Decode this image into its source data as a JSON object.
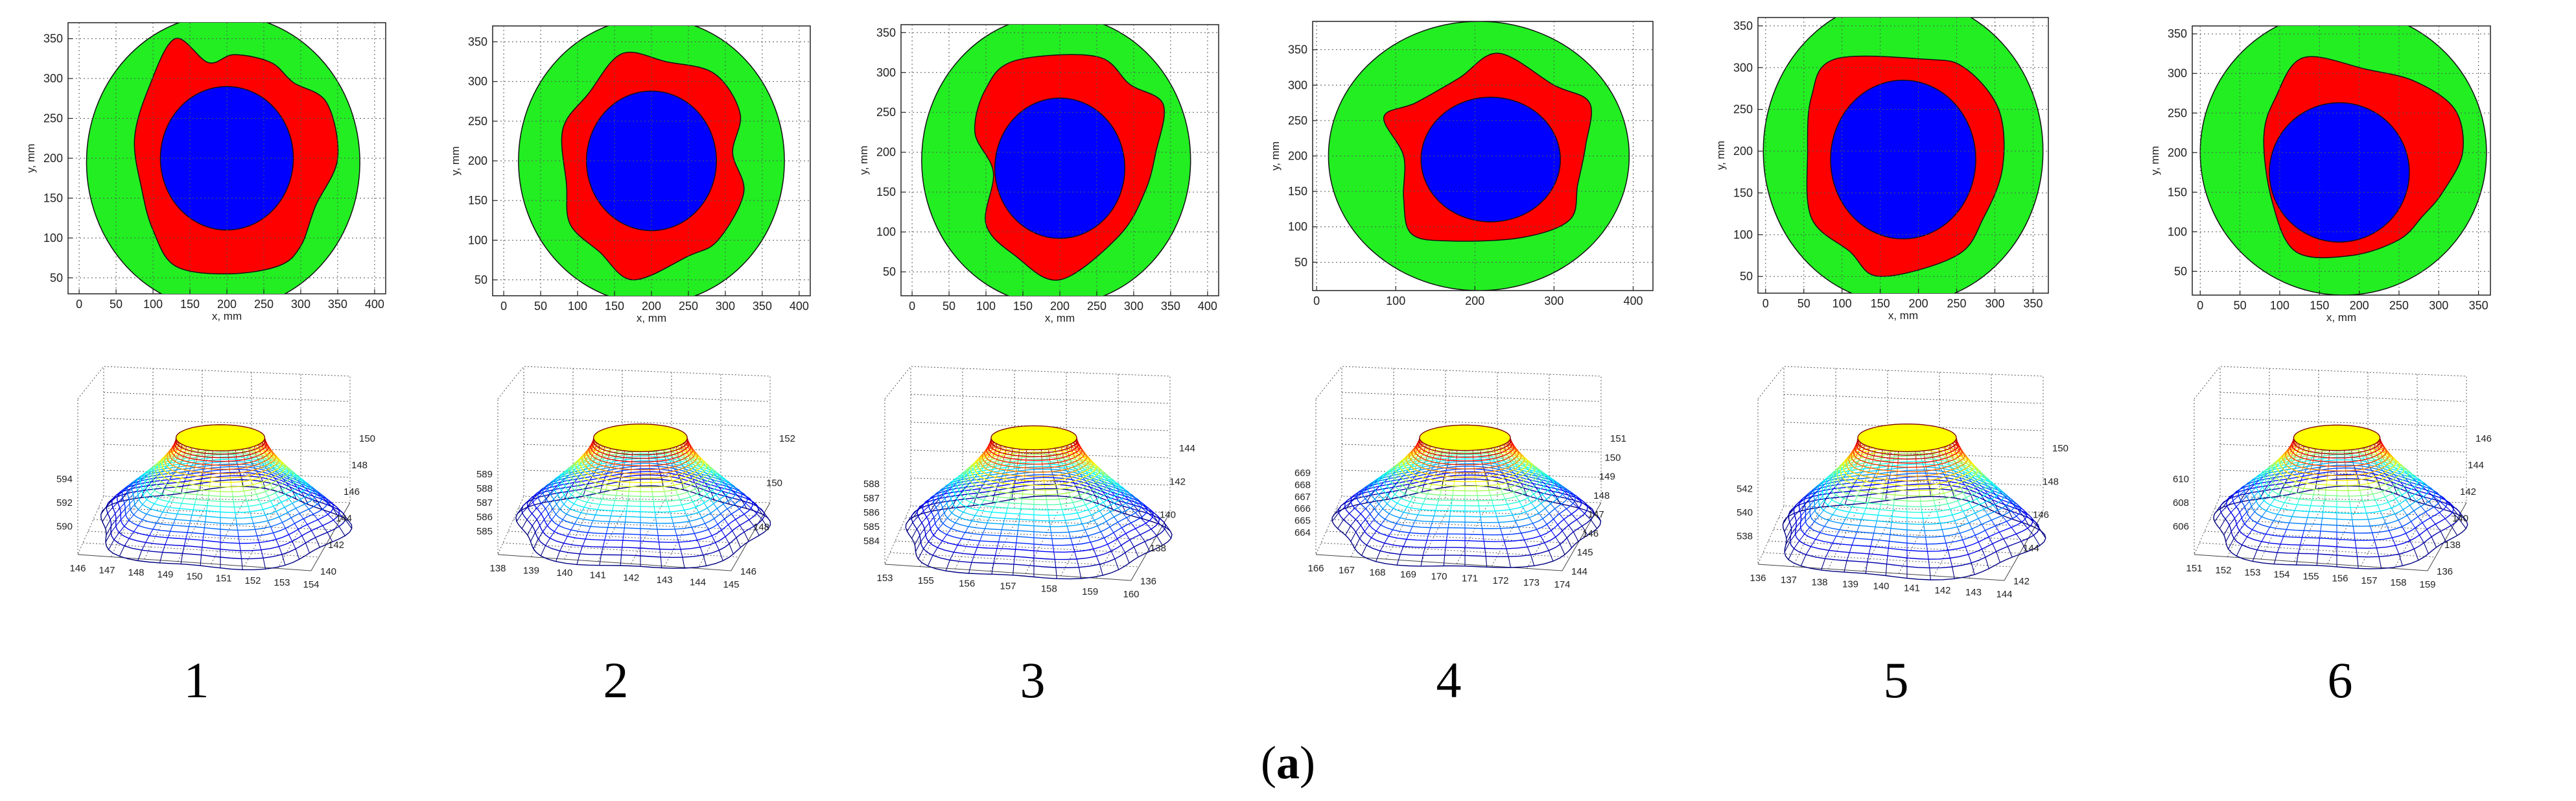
{
  "figure": {
    "label_prefix": "(",
    "label_letter": "a",
    "label_suffix": ")",
    "panel_captions": [
      "1",
      "2",
      "3",
      "4",
      "5",
      "6"
    ]
  },
  "colors": {
    "outer_region": "#22ee22",
    "middle_region": "#ff0000",
    "inner_region": "#0000ff",
    "surface_top": "#ffff00",
    "grid": "#888888"
  },
  "chart_data": [
    {
      "type": "area",
      "panel": "1",
      "xlabel": "x, mm",
      "ylabel": "y, mm",
      "xticks": [
        "0",
        "50",
        "100",
        "150",
        "200",
        "250",
        "300",
        "350",
        "400"
      ],
      "yticks": [
        "50",
        "100",
        "150",
        "200",
        "250",
        "300",
        "350"
      ],
      "xlim": [
        -15,
        415
      ],
      "ylim": [
        30,
        370
      ],
      "grid": true,
      "outer_circle": {
        "cx": 195,
        "cy": 195,
        "r": 185
      },
      "inner_circle": {
        "cx": 200,
        "cy": 200,
        "r": 90
      },
      "middle_region": [
        [
          130,
          350
        ],
        [
          175,
          320
        ],
        [
          210,
          330
        ],
        [
          260,
          320
        ],
        [
          290,
          295
        ],
        [
          335,
          270
        ],
        [
          350,
          200
        ],
        [
          320,
          140
        ],
        [
          300,
          90
        ],
        [
          270,
          65
        ],
        [
          200,
          55
        ],
        [
          130,
          65
        ],
        [
          100,
          110
        ],
        [
          85,
          160
        ],
        [
          75,
          225
        ],
        [
          95,
          290
        ]
      ]
    },
    {
      "type": "area",
      "panel": "2",
      "xlabel": "x, mm",
      "ylabel": "y, mm",
      "xticks": [
        "0",
        "50",
        "100",
        "150",
        "200",
        "250",
        "300",
        "350",
        "400"
      ],
      "yticks": [
        "50",
        "100",
        "150",
        "200",
        "250",
        "300",
        "350"
      ],
      "xlim": [
        -15,
        415
      ],
      "ylim": [
        30,
        370
      ],
      "grid": true,
      "outer_circle": {
        "cx": 200,
        "cy": 200,
        "r": 180
      },
      "inner_circle": {
        "cx": 200,
        "cy": 200,
        "r": 88
      },
      "middle_region": [
        [
          160,
          335
        ],
        [
          220,
          325
        ],
        [
          285,
          310
        ],
        [
          320,
          260
        ],
        [
          310,
          210
        ],
        [
          325,
          160
        ],
        [
          290,
          100
        ],
        [
          250,
          80
        ],
        [
          175,
          50
        ],
        [
          130,
          85
        ],
        [
          90,
          120
        ],
        [
          85,
          170
        ],
        [
          80,
          240
        ],
        [
          115,
          285
        ]
      ]
    },
    {
      "type": "area",
      "panel": "3",
      "xlabel": "x, mm",
      "ylabel": "y, mm",
      "xticks": [
        "0",
        "50",
        "100",
        "150",
        "200",
        "250",
        "300",
        "350",
        "400"
      ],
      "yticks": [
        "50",
        "100",
        "150",
        "200",
        "250",
        "300",
        "350"
      ],
      "xlim": [
        -15,
        415
      ],
      "ylim": [
        20,
        360
      ],
      "grid": true,
      "outer_circle": {
        "cx": 195,
        "cy": 190,
        "r": 182
      },
      "inner_circle": {
        "cx": 200,
        "cy": 180,
        "r": 88
      },
      "middle_region": [
        [
          140,
          315
        ],
        [
          250,
          320
        ],
        [
          295,
          285
        ],
        [
          340,
          260
        ],
        [
          330,
          200
        ],
        [
          315,
          150
        ],
        [
          280,
          95
        ],
        [
          200,
          40
        ],
        [
          140,
          70
        ],
        [
          100,
          110
        ],
        [
          110,
          175
        ],
        [
          85,
          225
        ],
        [
          100,
          280
        ]
      ]
    },
    {
      "type": "area",
      "panel": "4",
      "xlabel": "",
      "ylabel": "y, mm",
      "xticks": [
        "0",
        "100",
        "200",
        "300",
        "400"
      ],
      "yticks": [
        "50",
        "100",
        "150",
        "200",
        "250",
        "300",
        "350"
      ],
      "xlim": [
        -5,
        425
      ],
      "ylim": [
        10,
        390
      ],
      "grid": true,
      "outer_circle": {
        "cx": 205,
        "cy": 200,
        "r": 190
      },
      "inner_circle": {
        "cx": 220,
        "cy": 195,
        "r": 88
      },
      "middle_region": [
        [
          230,
          345
        ],
        [
          300,
          300
        ],
        [
          345,
          275
        ],
        [
          340,
          215
        ],
        [
          330,
          160
        ],
        [
          320,
          110
        ],
        [
          260,
          85
        ],
        [
          170,
          80
        ],
        [
          120,
          90
        ],
        [
          110,
          140
        ],
        [
          110,
          200
        ],
        [
          85,
          255
        ],
        [
          125,
          275
        ],
        [
          180,
          310
        ]
      ]
    },
    {
      "type": "area",
      "panel": "5",
      "xlabel": "x, mm",
      "ylabel": "y, mm",
      "xticks": [
        "0",
        "50",
        "100",
        "150",
        "200",
        "250",
        "300",
        "350"
      ],
      "yticks": [
        "50",
        "100",
        "150",
        "200",
        "250",
        "300",
        "350"
      ],
      "xlim": [
        -10,
        370
      ],
      "ylim": [
        30,
        360
      ],
      "grid": true,
      "outer_circle": {
        "cx": 180,
        "cy": 200,
        "r": 183
      },
      "inner_circle": {
        "cx": 180,
        "cy": 190,
        "r": 95
      },
      "middle_region": [
        [
          90,
          310
        ],
        [
          210,
          310
        ],
        [
          260,
          300
        ],
        [
          305,
          250
        ],
        [
          310,
          180
        ],
        [
          285,
          120
        ],
        [
          250,
          75
        ],
        [
          150,
          50
        ],
        [
          110,
          80
        ],
        [
          60,
          120
        ],
        [
          55,
          200
        ],
        [
          60,
          265
        ]
      ]
    },
    {
      "type": "area",
      "panel": "6",
      "xlabel": "x, mm",
      "ylabel": "y, mm",
      "xticks": [
        "0",
        "50",
        "100",
        "150",
        "200",
        "250",
        "300",
        "350"
      ],
      "yticks": [
        "50",
        "100",
        "150",
        "200",
        "250",
        "300",
        "350"
      ],
      "xlim": [
        -10,
        365
      ],
      "ylim": [
        20,
        360
      ],
      "grid": true,
      "outer_circle": {
        "cx": 180,
        "cy": 200,
        "r": 180
      },
      "inner_circle": {
        "cx": 175,
        "cy": 175,
        "r": 88
      },
      "middle_region": [
        [
          130,
          320
        ],
        [
          210,
          305
        ],
        [
          270,
          290
        ],
        [
          320,
          255
        ],
        [
          330,
          200
        ],
        [
          305,
          150
        ],
        [
          280,
          120
        ],
        [
          250,
          90
        ],
        [
          190,
          70
        ],
        [
          120,
          75
        ],
        [
          90,
          140
        ],
        [
          80,
          220
        ],
        [
          95,
          270
        ]
      ]
    }
  ],
  "surfaces": [
    {
      "panel": "1",
      "xticks": [
        "146",
        "147",
        "148",
        "149",
        "150",
        "151",
        "152",
        "153",
        "154"
      ],
      "yticks": [
        "140",
        "142",
        "144",
        "146",
        "148",
        "150"
      ],
      "zticks": [
        "590",
        "592",
        "594"
      ],
      "extra_zticks": [],
      "lobes": 5,
      "phase": 0.3,
      "rings": 22,
      "top_ratio": 0.36
    },
    {
      "panel": "2",
      "xticks": [
        "138",
        "139",
        "140",
        "141",
        "142",
        "143",
        "144",
        "145"
      ],
      "yticks": [
        "146",
        "148",
        "150",
        "152"
      ],
      "zticks": [
        "585",
        "586",
        "587",
        "588",
        "589"
      ],
      "extra_zticks": [],
      "lobes": 5,
      "phase": 1.0,
      "rings": 22,
      "top_ratio": 0.38
    },
    {
      "panel": "3",
      "xticks": [
        "153",
        "155",
        "156",
        "157",
        "158",
        "159",
        "160"
      ],
      "yticks": [
        "136",
        "138",
        "140",
        "142",
        "144"
      ],
      "zticks": [
        "584",
        "585",
        "586",
        "587",
        "588"
      ],
      "extra_zticks": [],
      "lobes": 5,
      "phase": 0.6,
      "rings": 24,
      "top_ratio": 0.33
    },
    {
      "panel": "4",
      "xticks": [
        "166",
        "167",
        "168",
        "169",
        "170",
        "171",
        "172",
        "173",
        "174"
      ],
      "yticks": [
        "144",
        "145",
        "146",
        "147",
        "148",
        "149",
        "150",
        "151"
      ],
      "zticks": [
        "664",
        "665",
        "666",
        "667",
        "668",
        "669"
      ],
      "extra_zticks": [],
      "lobes": 5,
      "phase": 1.3,
      "rings": 22,
      "top_ratio": 0.35
    },
    {
      "panel": "5",
      "xticks": [
        "136",
        "137",
        "138",
        "139",
        "140",
        "141",
        "142",
        "143",
        "144"
      ],
      "yticks": [
        "142",
        "144",
        "146",
        "148",
        "150"
      ],
      "zticks": [
        "538",
        "540",
        "542"
      ],
      "extra_zticks": [],
      "lobes": 5,
      "phase": 0.1,
      "rings": 22,
      "top_ratio": 0.38
    },
    {
      "panel": "6",
      "xticks": [
        "151",
        "152",
        "153",
        "154",
        "155",
        "156",
        "157",
        "158",
        "159"
      ],
      "yticks": [
        "136",
        "138",
        "140",
        "142",
        "144",
        "146"
      ],
      "zticks": [
        "606",
        "608",
        "610"
      ],
      "extra_zticks": [],
      "lobes": 5,
      "phase": 0.8,
      "rings": 20,
      "top_ratio": 0.35
    }
  ]
}
